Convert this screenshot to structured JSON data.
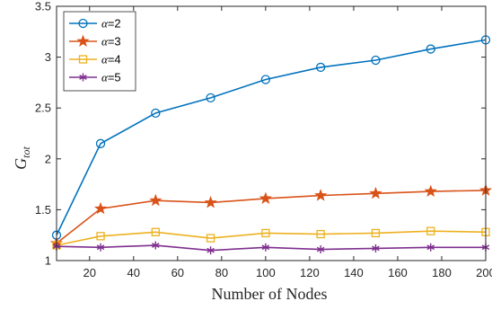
{
  "chart_data": {
    "type": "line",
    "x": [
      5,
      25,
      50,
      75,
      100,
      125,
      150,
      175,
      200
    ],
    "series": [
      {
        "name": "α=2",
        "alpha": "α",
        "value_label": "=2",
        "color": "#0072BD",
        "marker": "circle",
        "values": [
          1.25,
          2.15,
          2.45,
          2.6,
          2.78,
          2.9,
          2.97,
          3.08,
          3.17
        ]
      },
      {
        "name": "α=3",
        "alpha": "α",
        "value_label": "=3",
        "color": "#D95319",
        "marker": "star",
        "values": [
          1.17,
          1.51,
          1.59,
          1.57,
          1.61,
          1.64,
          1.66,
          1.68,
          1.69
        ]
      },
      {
        "name": "α=4",
        "alpha": "α",
        "value_label": "=4",
        "color": "#EDB120",
        "marker": "square",
        "values": [
          1.15,
          1.24,
          1.28,
          1.22,
          1.27,
          1.26,
          1.27,
          1.29,
          1.28
        ]
      },
      {
        "name": "α=5",
        "alpha": "α",
        "value_label": "=5",
        "color": "#7E2F8E",
        "marker": "asterisk",
        "values": [
          1.14,
          1.13,
          1.15,
          1.1,
          1.13,
          1.11,
          1.12,
          1.13,
          1.13
        ]
      }
    ],
    "xlabel": "Number of Nodes",
    "ylabel_main": "G",
    "ylabel_sub": "tot",
    "xlim": [
      5,
      200
    ],
    "ylim": [
      1,
      3.5
    ],
    "xticks": [
      "20",
      "40",
      "60",
      "80",
      "100",
      "120",
      "140",
      "160",
      "180",
      "200"
    ],
    "yticks": [
      "1",
      "1.5",
      "2",
      "2.5",
      "3",
      "3.5"
    ],
    "grid": false,
    "legend_position": "top-left"
  }
}
